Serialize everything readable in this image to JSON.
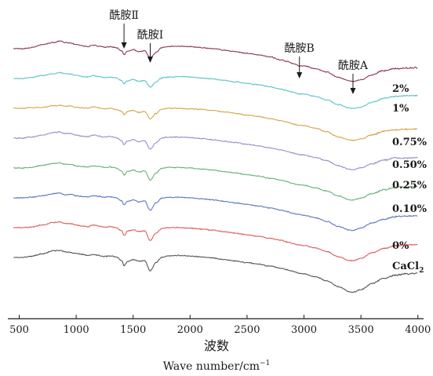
{
  "chart_data": {
    "type": "line",
    "xlabel_cn": "波数",
    "xlabel_en": "Wave number/cm",
    "xlabel_en_sup": "−1",
    "xlim": [
      400,
      4050
    ],
    "x_ticks": [
      500,
      1000,
      1500,
      2000,
      2500,
      3000,
      3500,
      4000
    ],
    "x_tick_labels": [
      "500",
      "1000",
      "1500",
      "2000",
      "2500",
      "3000",
      "3500",
      "4000"
    ],
    "grid": false,
    "annotations": [
      {
        "text": "酰胺Ⅱ",
        "x": 1420
      },
      {
        "text": "酰胺Ⅰ",
        "x": 1650
      },
      {
        "text": "酰胺B",
        "x": 2960
      },
      {
        "text": "酰胺A",
        "x": 3430
      }
    ],
    "series": [
      {
        "name": "2%",
        "color": "#8a3a4a",
        "offset": 0,
        "amp": 1.0,
        "x": [
          450,
          520,
          600,
          700,
          800,
          860,
          900,
          950,
          1000,
          1050,
          1100,
          1150,
          1200,
          1250,
          1300,
          1350,
          1400,
          1420,
          1450,
          1500,
          1550,
          1600,
          1650,
          1700,
          1750,
          1800,
          1900,
          2000,
          2100,
          2200,
          2300,
          2400,
          2500,
          2600,
          2700,
          2800,
          2850,
          2900,
          2930,
          2960,
          3000,
          3100,
          3200,
          3300,
          3400,
          3430,
          3500,
          3600,
          3700,
          3800,
          3900,
          4000
        ],
        "y": [
          0,
          0,
          -0.1,
          -0.4,
          -0.6,
          -0.75,
          -0.6,
          -0.55,
          -0.4,
          -0.3,
          -0.2,
          -0.35,
          -0.25,
          -0.15,
          -0.2,
          -0.1,
          0.2,
          0.6,
          0.25,
          0.1,
          0.3,
          0.2,
          0.95,
          0.35,
          -0.1,
          -0.2,
          -0.25,
          -0.2,
          -0.1,
          0.0,
          0.15,
          0.3,
          0.45,
          0.6,
          0.8,
          1.1,
          1.25,
          1.45,
          1.55,
          1.7,
          1.7,
          1.95,
          2.3,
          2.8,
          3.15,
          3.2,
          3.05,
          2.55,
          2.15,
          1.95,
          1.9,
          1.85
        ]
      },
      {
        "name": "1%",
        "color": "#5cc4cc",
        "offset": 1.0,
        "amp": 0.95,
        "x": [
          450,
          520,
          600,
          700,
          800,
          860,
          900,
          950,
          1000,
          1050,
          1100,
          1150,
          1200,
          1250,
          1300,
          1350,
          1400,
          1420,
          1450,
          1500,
          1550,
          1600,
          1650,
          1700,
          1750,
          1800,
          1900,
          2000,
          2100,
          2200,
          2300,
          2400,
          2500,
          2600,
          2700,
          2800,
          2850,
          2900,
          2930,
          2960,
          3000,
          3100,
          3200,
          3300,
          3400,
          3430,
          3500,
          3600,
          3700,
          3800,
          3900,
          4000
        ],
        "y": [
          0,
          0,
          -0.1,
          -0.3,
          -0.5,
          -0.6,
          -0.5,
          -0.45,
          -0.35,
          -0.2,
          -0.15,
          -0.3,
          -0.2,
          -0.1,
          -0.15,
          -0.05,
          0.2,
          0.55,
          0.25,
          0.1,
          0.3,
          0.2,
          0.9,
          0.35,
          -0.05,
          -0.15,
          -0.2,
          -0.15,
          -0.05,
          0.05,
          0.2,
          0.35,
          0.5,
          0.65,
          0.85,
          1.1,
          1.25,
          1.4,
          1.5,
          1.6,
          1.6,
          1.85,
          2.2,
          2.7,
          3.05,
          3.1,
          2.95,
          2.45,
          2.05,
          1.85,
          1.8,
          1.75
        ]
      },
      {
        "name": "0.75%",
        "color": "#d4a64a",
        "offset": 2.0,
        "amp": 1.0,
        "x": [
          450,
          520,
          600,
          700,
          800,
          860,
          900,
          950,
          1000,
          1050,
          1100,
          1150,
          1200,
          1250,
          1300,
          1350,
          1400,
          1420,
          1450,
          1500,
          1550,
          1600,
          1650,
          1700,
          1750,
          1800,
          1900,
          2000,
          2100,
          2200,
          2300,
          2400,
          2500,
          2600,
          2700,
          2800,
          2850,
          2900,
          2930,
          2960,
          3000,
          3100,
          3200,
          3300,
          3400,
          3430,
          3500,
          3600,
          3700,
          3800,
          3900,
          4000
        ],
        "y": [
          0,
          0,
          -0.05,
          -0.1,
          -0.25,
          -0.3,
          -0.2,
          -0.25,
          -0.1,
          -0.05,
          0.0,
          -0.15,
          -0.05,
          0.05,
          0.0,
          0.1,
          0.3,
          0.6,
          0.3,
          0.2,
          0.4,
          0.3,
          1.05,
          0.5,
          0.1,
          0.0,
          0.0,
          0.05,
          0.1,
          0.2,
          0.35,
          0.5,
          0.65,
          0.8,
          1.0,
          1.2,
          1.35,
          1.5,
          1.6,
          1.65,
          1.7,
          1.95,
          2.3,
          2.8,
          3.1,
          3.15,
          3.0,
          2.6,
          2.25,
          2.1,
          2.05,
          2.0
        ]
      },
      {
        "name": "0.50%",
        "color": "#9a8ccc",
        "offset": 3.0,
        "amp": 1.0,
        "x": [
          450,
          520,
          600,
          700,
          800,
          860,
          900,
          950,
          1000,
          1050,
          1100,
          1150,
          1200,
          1250,
          1300,
          1350,
          1400,
          1420,
          1450,
          1500,
          1550,
          1600,
          1650,
          1700,
          1750,
          1800,
          1900,
          2000,
          2100,
          2200,
          2300,
          2400,
          2500,
          2600,
          2700,
          2800,
          2850,
          2900,
          2930,
          2960,
          3000,
          3100,
          3200,
          3300,
          3400,
          3430,
          3500,
          3600,
          3700,
          3800,
          3900,
          4000
        ],
        "y": [
          0,
          0,
          -0.1,
          -0.3,
          -0.55,
          -0.6,
          -0.45,
          -0.45,
          -0.3,
          -0.2,
          -0.15,
          -0.3,
          -0.2,
          -0.1,
          -0.15,
          -0.05,
          0.25,
          0.65,
          0.3,
          0.15,
          0.35,
          0.25,
          1.1,
          0.45,
          0.0,
          -0.1,
          -0.1,
          -0.05,
          0.05,
          0.15,
          0.3,
          0.45,
          0.6,
          0.75,
          0.95,
          1.15,
          1.3,
          1.45,
          1.55,
          1.6,
          1.65,
          1.9,
          2.2,
          2.7,
          3.05,
          3.1,
          2.9,
          2.5,
          2.15,
          1.95,
          1.95,
          1.9
        ]
      },
      {
        "name": "0.25%",
        "color": "#6ab07a",
        "offset": 4.0,
        "amp": 1.0,
        "x": [
          450,
          520,
          600,
          700,
          800,
          860,
          900,
          950,
          1000,
          1050,
          1100,
          1150,
          1200,
          1250,
          1300,
          1350,
          1400,
          1420,
          1450,
          1500,
          1550,
          1600,
          1650,
          1700,
          1750,
          1800,
          1900,
          2000,
          2100,
          2200,
          2300,
          2400,
          2500,
          2600,
          2700,
          2800,
          2850,
          2900,
          2930,
          2960,
          3000,
          3100,
          3200,
          3300,
          3400,
          3430,
          3500,
          3600,
          3700,
          3800,
          3900,
          4000
        ],
        "y": [
          0,
          0,
          -0.05,
          -0.25,
          -0.45,
          -0.5,
          -0.35,
          -0.35,
          -0.2,
          -0.15,
          -0.1,
          -0.2,
          -0.15,
          -0.05,
          -0.1,
          0.0,
          0.3,
          0.7,
          0.35,
          0.2,
          0.4,
          0.3,
          1.15,
          0.5,
          0.05,
          -0.05,
          -0.05,
          0.0,
          0.1,
          0.2,
          0.35,
          0.5,
          0.65,
          0.8,
          1.0,
          1.2,
          1.35,
          1.5,
          1.6,
          1.65,
          1.7,
          1.95,
          2.25,
          2.75,
          3.1,
          3.15,
          2.95,
          2.5,
          2.15,
          1.9,
          1.85,
          1.8
        ]
      },
      {
        "name": "0.10%",
        "color": "#5a78c4",
        "offset": 5.0,
        "amp": 1.0,
        "x": [
          450,
          520,
          600,
          700,
          800,
          860,
          900,
          950,
          1000,
          1050,
          1100,
          1150,
          1200,
          1250,
          1300,
          1350,
          1400,
          1420,
          1450,
          1500,
          1550,
          1600,
          1650,
          1700,
          1750,
          1800,
          1900,
          2000,
          2100,
          2200,
          2300,
          2400,
          2500,
          2600,
          2700,
          2800,
          2850,
          2900,
          2930,
          2960,
          3000,
          3100,
          3200,
          3300,
          3400,
          3430,
          3500,
          3600,
          3700,
          3800,
          3900,
          4000
        ],
        "y": [
          0,
          0,
          -0.05,
          -0.2,
          -0.4,
          -0.45,
          -0.3,
          -0.35,
          -0.2,
          -0.15,
          -0.1,
          -0.2,
          -0.15,
          -0.05,
          -0.1,
          0.0,
          0.3,
          0.7,
          0.35,
          0.2,
          0.4,
          0.3,
          1.2,
          0.5,
          0.05,
          -0.05,
          -0.05,
          0.0,
          0.1,
          0.2,
          0.35,
          0.5,
          0.65,
          0.8,
          1.0,
          1.2,
          1.35,
          1.5,
          1.6,
          1.65,
          1.7,
          1.95,
          2.3,
          2.8,
          3.15,
          3.2,
          2.95,
          2.45,
          2.1,
          1.85,
          1.8,
          1.75
        ]
      },
      {
        "name": "0%",
        "color": "#e05a5a",
        "offset": 6.0,
        "amp": 1.0,
        "x": [
          450,
          520,
          600,
          700,
          800,
          860,
          900,
          950,
          1000,
          1050,
          1100,
          1150,
          1200,
          1250,
          1300,
          1350,
          1400,
          1420,
          1450,
          1500,
          1550,
          1600,
          1650,
          1700,
          1750,
          1800,
          1900,
          2000,
          2100,
          2200,
          2300,
          2400,
          2500,
          2600,
          2700,
          2800,
          2850,
          2900,
          2930,
          2960,
          3000,
          3100,
          3200,
          3300,
          3400,
          3430,
          3500,
          3600,
          3700,
          3800,
          3900,
          4000
        ],
        "y": [
          0,
          0,
          -0.05,
          -0.25,
          -0.5,
          -0.55,
          -0.4,
          -0.4,
          -0.25,
          -0.15,
          -0.1,
          -0.25,
          -0.15,
          -0.05,
          -0.1,
          0.0,
          0.3,
          0.75,
          0.35,
          0.2,
          0.4,
          0.3,
          1.25,
          0.55,
          0.1,
          0.0,
          0.0,
          0.05,
          0.15,
          0.25,
          0.4,
          0.55,
          0.7,
          0.85,
          1.05,
          1.25,
          1.4,
          1.55,
          1.65,
          1.7,
          1.75,
          2.0,
          2.35,
          2.85,
          3.2,
          3.25,
          3.0,
          2.45,
          2.05,
          1.8,
          1.7,
          1.65
        ]
      },
      {
        "name": "CaCl",
        "name_sub": "2",
        "color": "#555555",
        "offset": 7.0,
        "amp": 1.0,
        "x": [
          450,
          520,
          600,
          700,
          800,
          860,
          900,
          950,
          1000,
          1050,
          1100,
          1150,
          1200,
          1250,
          1300,
          1350,
          1400,
          1420,
          1450,
          1500,
          1550,
          1600,
          1650,
          1700,
          1750,
          1800,
          1900,
          2000,
          2100,
          2200,
          2300,
          2400,
          2500,
          2600,
          2700,
          2800,
          2850,
          2900,
          2930,
          2960,
          3000,
          3100,
          3200,
          3300,
          3400,
          3430,
          3500,
          3600,
          3700,
          3800,
          3900,
          4000
        ],
        "y": [
          0,
          0,
          -0.1,
          -0.35,
          -0.65,
          -0.7,
          -0.55,
          -0.5,
          -0.4,
          -0.3,
          -0.2,
          -0.3,
          -0.2,
          -0.1,
          -0.15,
          -0.05,
          0.3,
          0.8,
          0.4,
          0.2,
          0.35,
          0.3,
          1.3,
          0.5,
          0.0,
          -0.15,
          -0.2,
          -0.15,
          -0.05,
          0.05,
          0.2,
          0.35,
          0.5,
          0.65,
          0.85,
          1.05,
          1.2,
          1.35,
          1.45,
          1.55,
          1.6,
          1.9,
          2.3,
          2.85,
          3.35,
          3.4,
          3.15,
          2.55,
          2.05,
          1.75,
          1.6,
          1.55
        ]
      }
    ]
  }
}
